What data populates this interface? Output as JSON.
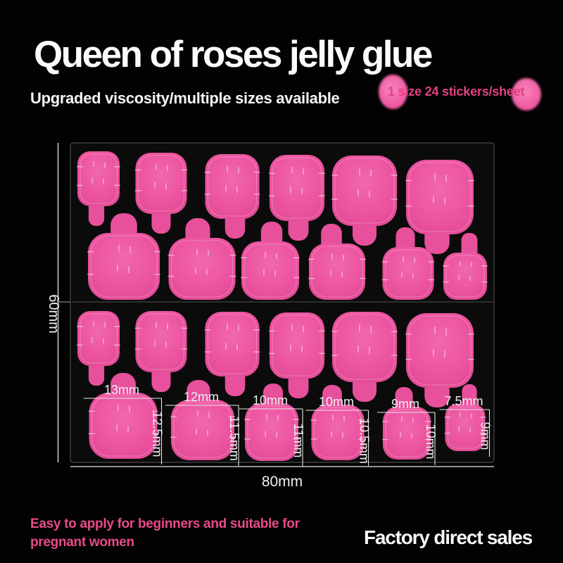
{
  "title": "Queen of roses jelly glue",
  "subtitle": "Upgraded viscosity/multiple sizes available",
  "promo": {
    "text": "1 size 24 stickers/sheet"
  },
  "sheet": {
    "width_label": "80mm",
    "height_label": "60mm",
    "sticker_count": 24,
    "columns": [
      {
        "width": "13mm",
        "height": "12.5mm"
      },
      {
        "width": "12mm",
        "height": "11.5mm"
      },
      {
        "width": "10mm",
        "height": "11mm"
      },
      {
        "width": "10mm",
        "height": "10.5mm"
      },
      {
        "width": "9mm",
        "height": "10mm"
      },
      {
        "width": "7.5mm",
        "height": "9mm"
      }
    ]
  },
  "footer": {
    "left_line1": "Easy to apply for beginners and suitable for",
    "left_line2": "pregnant women",
    "right": "Factory direct sales"
  },
  "colors": {
    "background": "#020202",
    "title_text": "#fbfbfb",
    "accent_pink_text": "#e84a8a",
    "sticker_pink": "#ec549f",
    "sticker_pink_dark": "#cf4188",
    "promo_circle_pink": "#f160a6",
    "measurement_text": "#f0f0f0",
    "sheet_black": "#0b0b0b"
  }
}
